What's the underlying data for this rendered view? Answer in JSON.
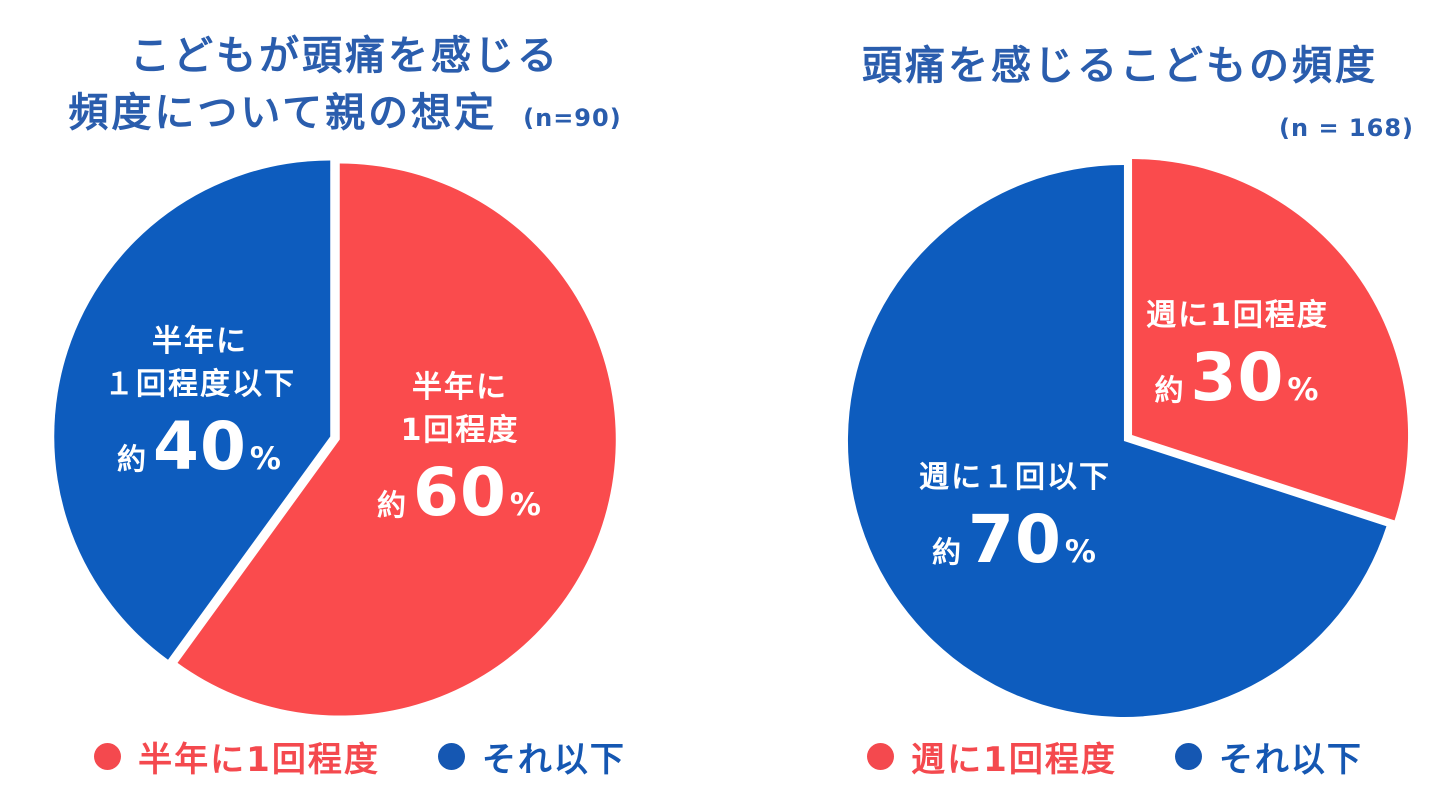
{
  "colors": {
    "red": "#FA4B4D",
    "blue": "#0D5CBE",
    "title_blue": "#2A5DAD",
    "legend_red": "#F4494E",
    "legend_blue": "#1557B2",
    "slice_text": "#FFFFFF",
    "background": "#FFFFFF"
  },
  "chart_data": [
    {
      "type": "pie",
      "title_lines": [
        "こどもが頭痛を感じる",
        "頻度について親の想定"
      ],
      "sample_size_label": "(n=90)",
      "n": 90,
      "start_angle_deg_from_top": 0,
      "direction": "clockwise",
      "legend_position": "bottom",
      "slices": [
        {
          "label_lines": [
            "半年に",
            "1回程度"
          ],
          "approx_prefix": "約",
          "value_text": "60",
          "unit": "%",
          "percent": 60,
          "color": "#FA4B4D"
        },
        {
          "label_lines": [
            "半年に",
            "１回程度以下"
          ],
          "approx_prefix": "約",
          "value_text": "40",
          "unit": "%",
          "percent": 40,
          "color": "#0D5CBE"
        }
      ],
      "legend": [
        {
          "label": "半年に1回程度",
          "color": "#F4494E"
        },
        {
          "label": "それ以下",
          "color": "#1557B2"
        }
      ]
    },
    {
      "type": "pie",
      "title_lines": [
        "頭痛を感じるこどもの頻度"
      ],
      "sample_size_label": "(n = 168)",
      "n": 168,
      "start_angle_deg_from_top": 0,
      "direction": "clockwise",
      "legend_position": "bottom",
      "slices": [
        {
          "label_lines": [
            "週に1回程度"
          ],
          "approx_prefix": "約",
          "value_text": "30",
          "unit": "%",
          "percent": 30,
          "color": "#FA4B4D"
        },
        {
          "label_lines": [
            "週に１回以下"
          ],
          "approx_prefix": "約",
          "value_text": "70",
          "unit": "%",
          "percent": 70,
          "color": "#0D5CBE"
        }
      ],
      "legend": [
        {
          "label": "週に1回程度",
          "color": "#F4494E"
        },
        {
          "label": "それ以下",
          "color": "#1557B2"
        }
      ]
    }
  ]
}
